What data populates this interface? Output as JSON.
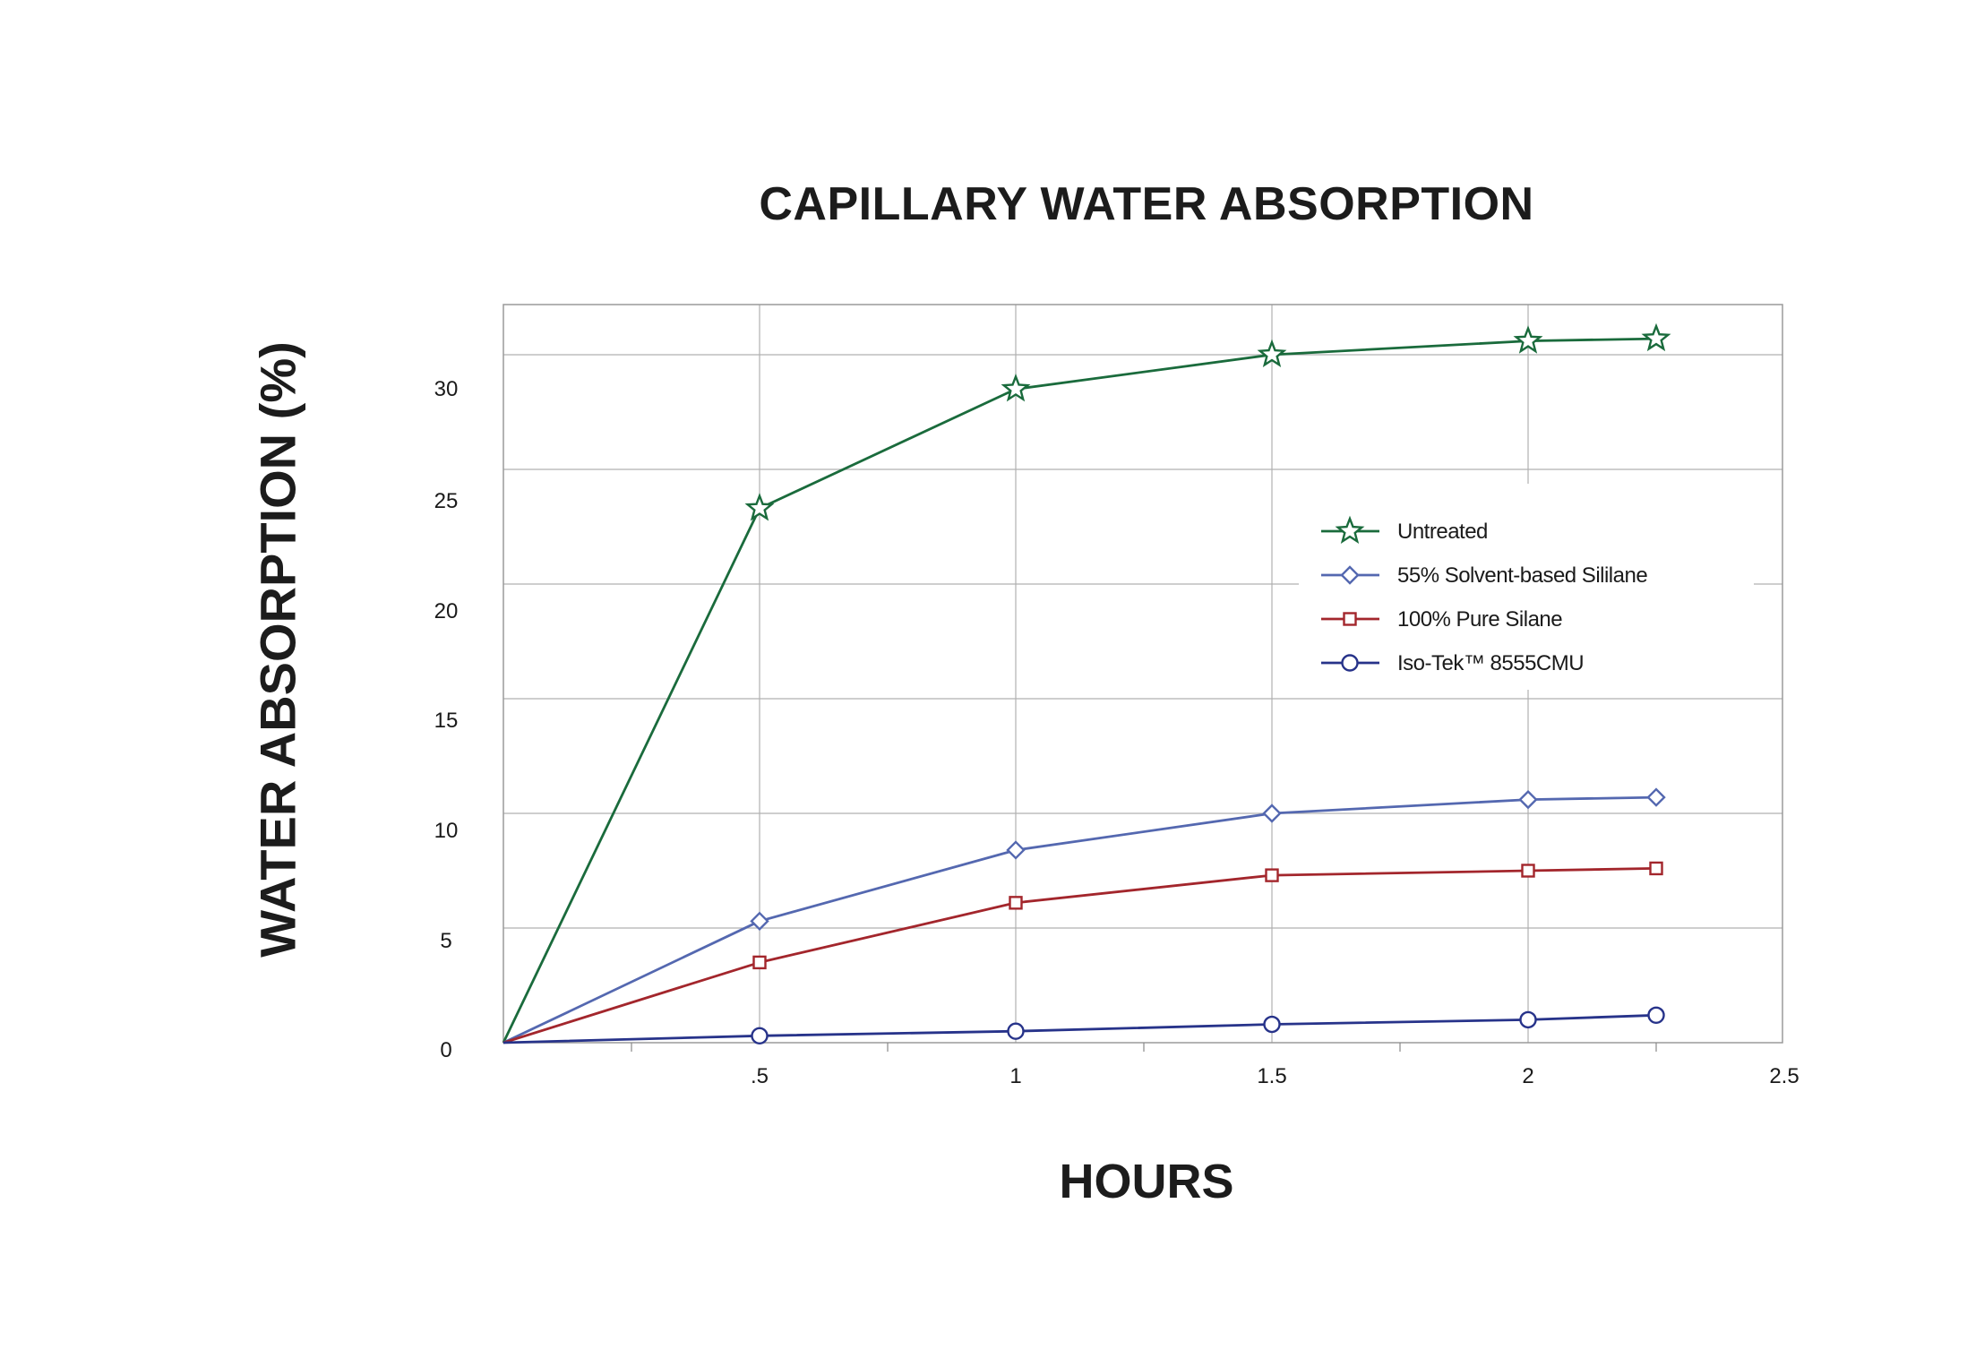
{
  "chart_data": {
    "type": "line",
    "title": "CAPILLARY WATER ABSORPTION",
    "xlabel": "HOURS",
    "ylabel": "WATER ABSORPTION  (%)",
    "xlim": [
      0,
      2.5
    ],
    "ylim": [
      0,
      33
    ],
    "x_ticks": [
      {
        "value": 0.5,
        "label": ".5"
      },
      {
        "value": 1,
        "label": "1"
      },
      {
        "value": 1.5,
        "label": "1.5"
      },
      {
        "value": 2,
        "label": "2"
      },
      {
        "value": 2.5,
        "label": "2.5"
      }
    ],
    "y_ticks": [
      {
        "value": 0,
        "label": "0"
      },
      {
        "value": 5,
        "label": "5"
      },
      {
        "value": 10,
        "label": "10"
      },
      {
        "value": 15,
        "label": "15"
      },
      {
        "value": 20,
        "label": "20"
      },
      {
        "value": 25,
        "label": "25"
      },
      {
        "value": 30,
        "label": "30"
      }
    ],
    "grid": true,
    "legend_position": "right",
    "series": [
      {
        "name": "Untreated",
        "color": "#1a6b3c",
        "marker": "star",
        "x": [
          0,
          0.5,
          1,
          1.5,
          2,
          2.25
        ],
        "y": [
          0,
          23.3,
          28.5,
          30.0,
          30.6,
          30.7
        ]
      },
      {
        "name": "55% Solvent-based Sililane",
        "color": "#5468b0",
        "marker": "diamond",
        "x": [
          0,
          0.5,
          1,
          1.5,
          2,
          2.25
        ],
        "y": [
          0,
          5.3,
          8.4,
          10.0,
          10.6,
          10.7
        ]
      },
      {
        "name": "100% Pure Silane",
        "color": "#a3262c",
        "marker": "square",
        "x": [
          0,
          0.5,
          1,
          1.5,
          2,
          2.25
        ],
        "y": [
          0,
          3.5,
          6.1,
          7.3,
          7.5,
          7.6
        ]
      },
      {
        "name": "Iso-Tek™ 8555CMU",
        "color": "#27338a",
        "marker": "circle",
        "x": [
          0,
          0.5,
          1,
          1.5,
          2,
          2.25
        ],
        "y": [
          0,
          0.3,
          0.5,
          0.8,
          1.0,
          1.2
        ]
      }
    ]
  }
}
